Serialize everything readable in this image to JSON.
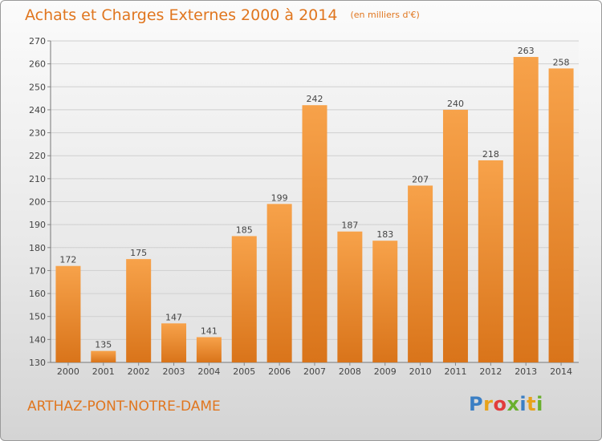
{
  "title": {
    "main": "Achats et Charges Externes 2000 à 2014",
    "unit": "(en milliers d'€)"
  },
  "commune": "ARTHAZ-PONT-NOTRE-DAME",
  "logo": {
    "letters": [
      "P",
      "r",
      "o",
      "x",
      "i",
      "t",
      "i"
    ],
    "colors": [
      "#3b7fc4",
      "#e8a21a",
      "#e23c3c",
      "#6ab02e",
      "#3b7fc4",
      "#e8a21a",
      "#6ab02e"
    ]
  },
  "colors": {
    "bar_top": "#f7a24a",
    "bar_bottom": "#d9741a",
    "text": "#e0761f",
    "grid": "#cfcfcf"
  },
  "chart_data": {
    "type": "bar",
    "categories": [
      "2000",
      "2001",
      "2002",
      "2003",
      "2004",
      "2005",
      "2006",
      "2007",
      "2008",
      "2009",
      "2010",
      "2011",
      "2012",
      "2013",
      "2014"
    ],
    "values": [
      172,
      135,
      175,
      147,
      141,
      185,
      199,
      242,
      187,
      183,
      207,
      240,
      218,
      263,
      258
    ],
    "ylim": [
      130,
      270
    ],
    "yticks": [
      "130",
      "140",
      "150",
      "160",
      "170",
      "180",
      "190",
      "200",
      "210",
      "220",
      "230",
      "240",
      "250",
      "260",
      "270"
    ],
    "data_labels": [
      "172",
      "135",
      "175",
      "147",
      "141",
      "185",
      "199",
      "242",
      "187",
      "183",
      "207",
      "240",
      "218",
      "263",
      "258"
    ],
    "grid": true
  }
}
